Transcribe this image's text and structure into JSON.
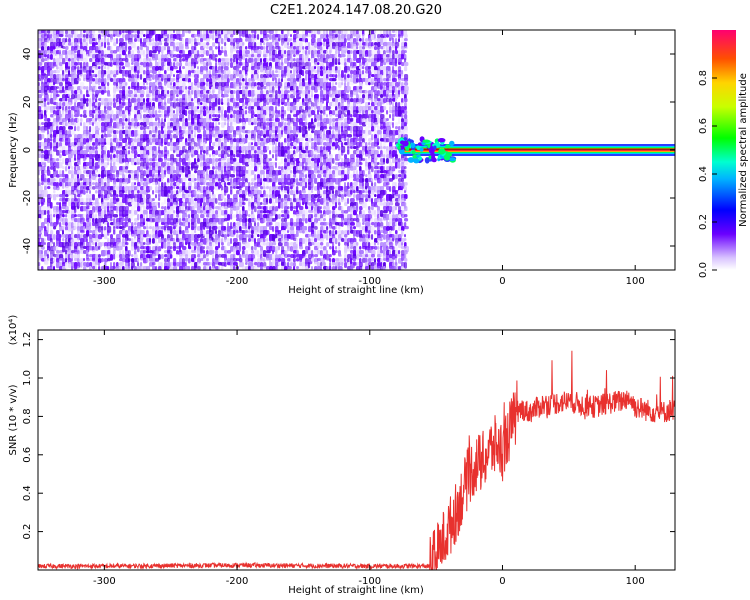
{
  "title": "C2E1.2024.147.08.20.G20",
  "chart_data": [
    {
      "type": "heatmap",
      "xlabel": "Height of straight line (km)",
      "ylabel": "Frequency (Hz)",
      "xlim": [
        -350,
        130
      ],
      "ylim": [
        -50,
        50
      ],
      "xticks": [
        -300,
        -200,
        -100,
        0,
        100
      ],
      "yticks": [
        -40,
        -20,
        0,
        20,
        40
      ],
      "noise_region_x": [
        -350,
        -73
      ],
      "signal_line_frequency": 0,
      "signal_line_start_x": -75,
      "colorbar": {
        "label": "Normalized spectral amplitude",
        "range": [
          0.0,
          1.0
        ],
        "ticks": [
          "0.0",
          "0.2",
          "0.4",
          "0.6",
          "0.8"
        ],
        "colormap": "rainbow"
      }
    },
    {
      "type": "line",
      "xlabel": "Height of straight line (km)",
      "ylabel": "SNR (10 * v/v)",
      "y_scale_label": "(x10⁴)",
      "xlim": [
        -350,
        130
      ],
      "ylim": [
        0,
        1.25
      ],
      "xticks": [
        -300,
        -200,
        -100,
        0,
        100
      ],
      "yticks": [
        "0.2",
        "0.4",
        "0.6",
        "0.8",
        "1.0",
        "1.2"
      ],
      "series": [
        {
          "color": "#e8312e",
          "x": [
            -350,
            -300,
            -200,
            -100,
            -55,
            -50,
            -45,
            -40,
            -35,
            -30,
            -25,
            -20,
            -15,
            -10,
            -5,
            0,
            5,
            10,
            15,
            20,
            30,
            40,
            50,
            60,
            70,
            80,
            90,
            95,
            100,
            110,
            120,
            130
          ],
          "y": [
            0.02,
            0.02,
            0.025,
            0.02,
            0.02,
            0.08,
            0.15,
            0.22,
            0.3,
            0.4,
            0.5,
            0.55,
            0.56,
            0.62,
            0.65,
            0.62,
            0.72,
            0.8,
            0.84,
            0.82,
            0.86,
            0.87,
            0.88,
            0.86,
            0.85,
            0.87,
            0.88,
            0.9,
            0.85,
            0.83,
            0.82,
            0.84
          ]
        }
      ]
    }
  ]
}
